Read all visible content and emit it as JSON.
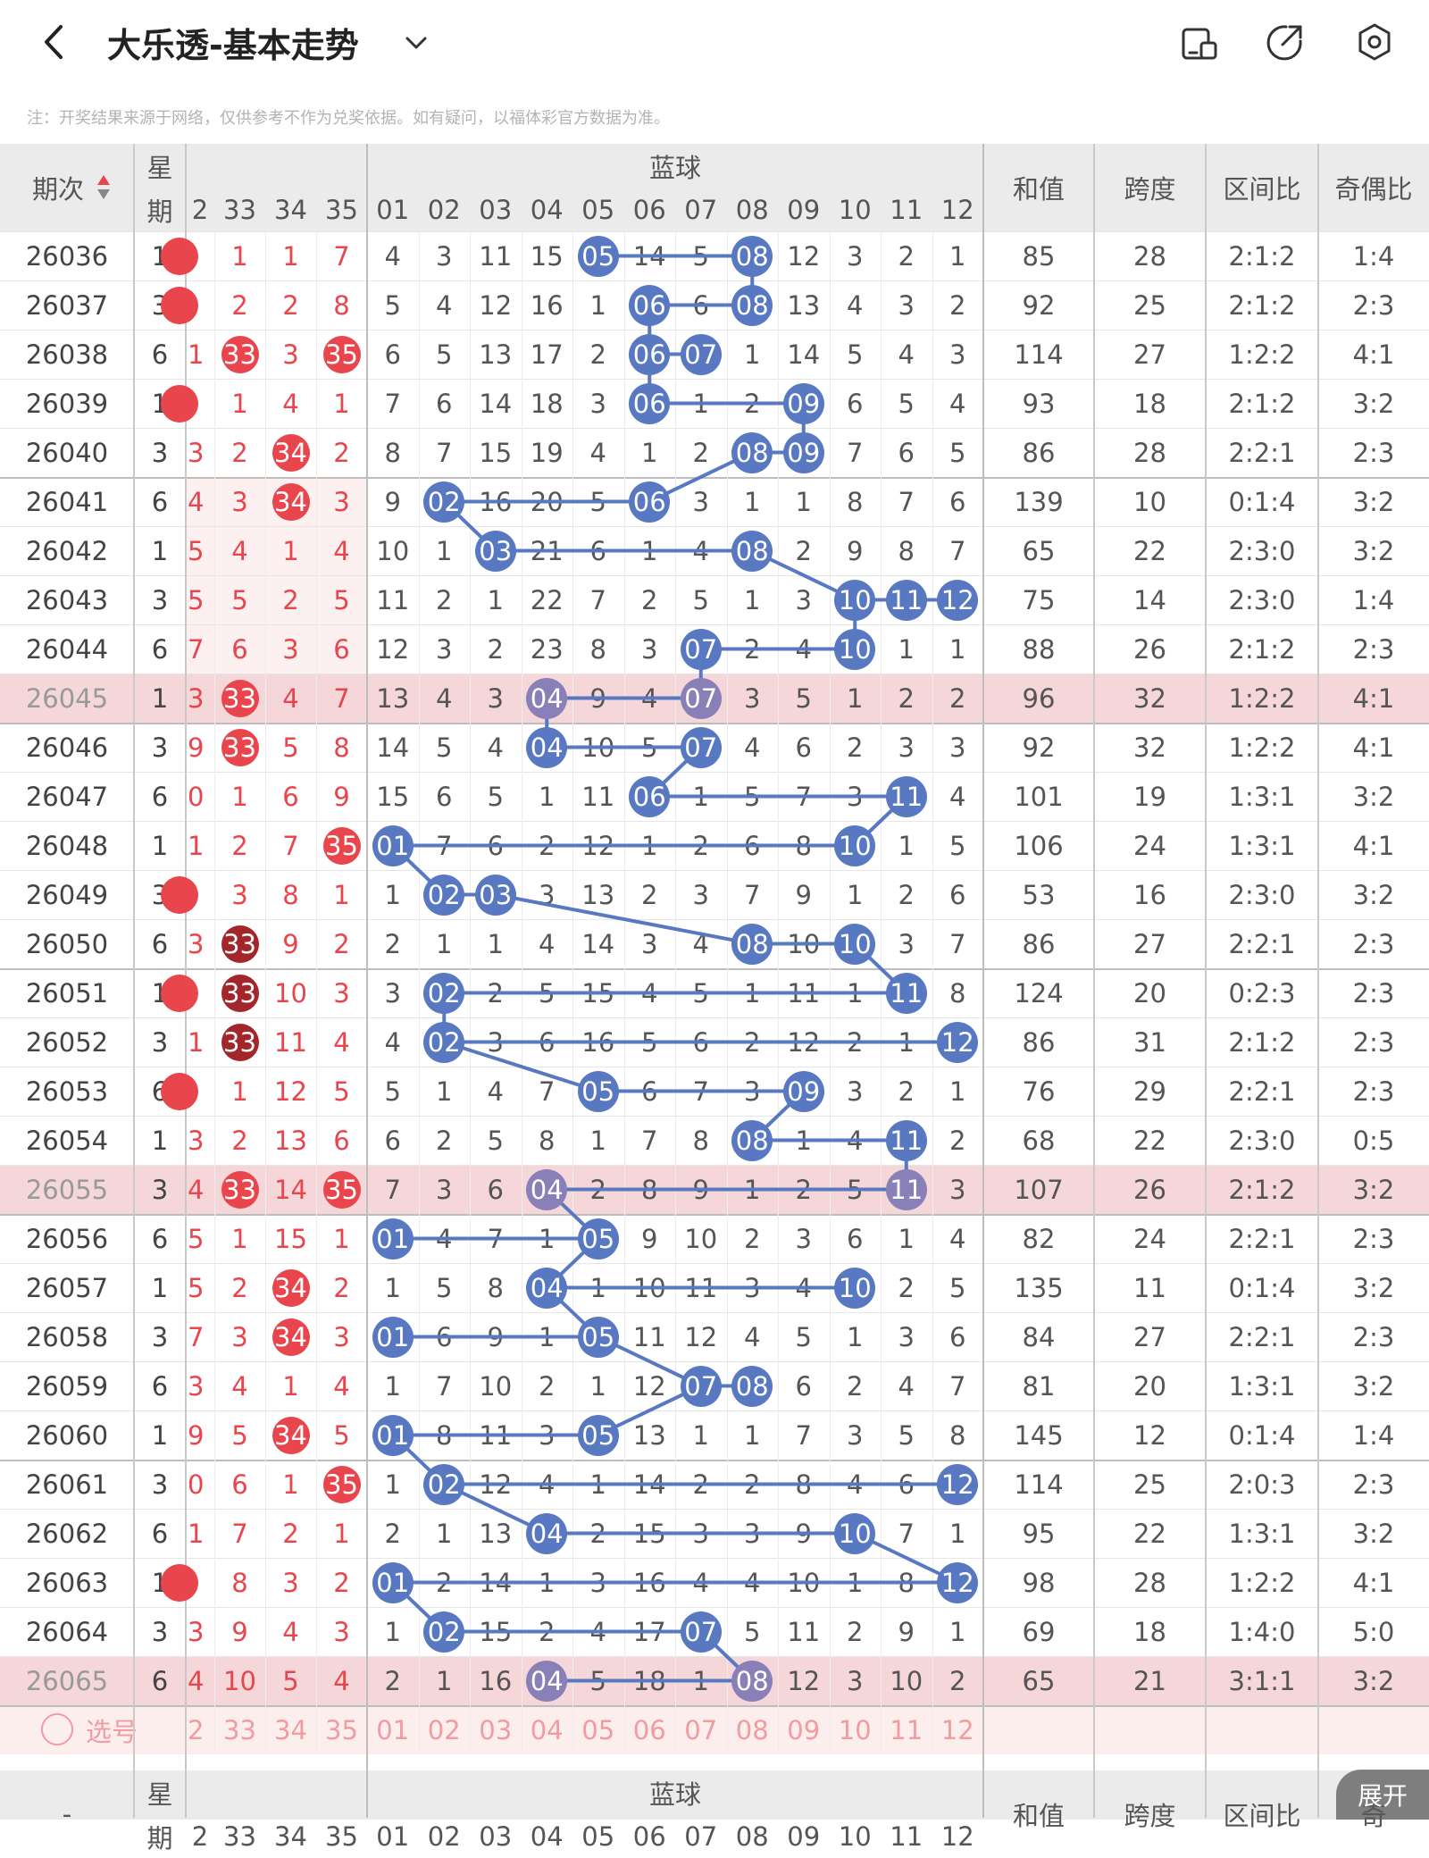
{
  "header": {
    "title": "大乐透-基本走势",
    "notice": "注：开奖结果来源于网络，仅供参考不作为兑奖依据。如有疑问，以福体彩官方数据为准。"
  },
  "table_head": {
    "period": "期次",
    "weekday": [
      "星",
      "期"
    ],
    "blue_group": "蓝球",
    "red_cols": [
      "2",
      "33",
      "34",
      "35"
    ],
    "blue_cols": [
      "01",
      "02",
      "03",
      "04",
      "05",
      "06",
      "07",
      "08",
      "09",
      "10",
      "11",
      "12"
    ],
    "stats": [
      "和值",
      "跨度",
      "区间比",
      "奇偶比"
    ]
  },
  "rows": [
    {
      "p": "26036",
      "w": "1",
      "r": [
        "2",
        "1",
        "1",
        "7"
      ],
      "b": [
        "4",
        "3",
        "11",
        "15",
        "05",
        "14",
        "5",
        "08",
        "12",
        "3",
        "2",
        "1"
      ],
      "s": [
        "85",
        "28",
        "2:1:2",
        "1:4"
      ]
    },
    {
      "p": "26037",
      "w": "3",
      "r": [
        "2",
        "2",
        "2",
        "8"
      ],
      "b": [
        "5",
        "4",
        "12",
        "16",
        "1",
        "06",
        "6",
        "08",
        "13",
        "4",
        "3",
        "2"
      ],
      "s": [
        "92",
        "25",
        "2:1:2",
        "2:3"
      ]
    },
    {
      "p": "26038",
      "w": "6",
      "r": [
        "1",
        "33",
        "3",
        "35"
      ],
      "b": [
        "6",
        "5",
        "13",
        "17",
        "2",
        "06",
        "07",
        "1",
        "14",
        "5",
        "4",
        "3"
      ],
      "s": [
        "114",
        "27",
        "1:2:2",
        "4:1"
      ]
    },
    {
      "p": "26039",
      "w": "1",
      "r": [
        "2",
        "1",
        "4",
        "1"
      ],
      "b": [
        "7",
        "6",
        "14",
        "18",
        "3",
        "06",
        "1",
        "2",
        "09",
        "6",
        "5",
        "4"
      ],
      "s": [
        "93",
        "18",
        "2:1:2",
        "3:2"
      ]
    },
    {
      "p": "26040",
      "w": "3",
      "r": [
        "3",
        "2",
        "34",
        "2"
      ],
      "b": [
        "8",
        "7",
        "15",
        "19",
        "4",
        "1",
        "2",
        "08",
        "09",
        "7",
        "6",
        "5"
      ],
      "s": [
        "86",
        "28",
        "2:2:1",
        "2:3"
      ]
    },
    {
      "p": "26041",
      "w": "6",
      "r": [
        "4",
        "3",
        "34",
        "3"
      ],
      "b": [
        "9",
        "02",
        "16",
        "20",
        "5",
        "06",
        "3",
        "1",
        "1",
        "8",
        "7",
        "6"
      ],
      "s": [
        "139",
        "10",
        "0:1:4",
        "3:2"
      ]
    },
    {
      "p": "26042",
      "w": "1",
      "r": [
        "5",
        "4",
        "1",
        "4"
      ],
      "b": [
        "10",
        "1",
        "03",
        "21",
        "6",
        "1",
        "4",
        "08",
        "2",
        "9",
        "8",
        "7"
      ],
      "s": [
        "65",
        "22",
        "2:3:0",
        "3:2"
      ]
    },
    {
      "p": "26043",
      "w": "3",
      "r": [
        "5",
        "5",
        "2",
        "5"
      ],
      "b": [
        "11",
        "2",
        "1",
        "22",
        "7",
        "2",
        "5",
        "1",
        "3",
        "10",
        "11",
        "12"
      ],
      "s": [
        "75",
        "14",
        "2:3:0",
        "1:4"
      ]
    },
    {
      "p": "26044",
      "w": "6",
      "r": [
        "7",
        "6",
        "3",
        "6"
      ],
      "b": [
        "12",
        "3",
        "2",
        "23",
        "8",
        "3",
        "07",
        "2",
        "4",
        "10",
        "1",
        "1"
      ],
      "s": [
        "88",
        "26",
        "2:1:2",
        "2:3"
      ]
    },
    {
      "p": "26045",
      "w": "1",
      "r": [
        "3",
        "33",
        "4",
        "7"
      ],
      "b": [
        "13",
        "4",
        "3",
        "04",
        "9",
        "4",
        "07",
        "3",
        "5",
        "1",
        "2",
        "2"
      ],
      "s": [
        "96",
        "32",
        "1:2:2",
        "4:1"
      ]
    },
    {
      "p": "26046",
      "w": "3",
      "r": [
        "9",
        "33",
        "5",
        "8"
      ],
      "b": [
        "14",
        "5",
        "4",
        "04",
        "10",
        "5",
        "07",
        "4",
        "6",
        "2",
        "3",
        "3"
      ],
      "s": [
        "92",
        "32",
        "1:2:2",
        "4:1"
      ]
    },
    {
      "p": "26047",
      "w": "6",
      "r": [
        "0",
        "1",
        "6",
        "9"
      ],
      "b": [
        "15",
        "6",
        "5",
        "1",
        "11",
        "06",
        "1",
        "5",
        "7",
        "3",
        "11",
        "4"
      ],
      "s": [
        "101",
        "19",
        "1:3:1",
        "3:2"
      ]
    },
    {
      "p": "26048",
      "w": "1",
      "r": [
        "1",
        "2",
        "7",
        "35"
      ],
      "b": [
        "01",
        "7",
        "6",
        "2",
        "12",
        "1",
        "2",
        "6",
        "8",
        "10",
        "1",
        "5"
      ],
      "s": [
        "106",
        "24",
        "1:3:1",
        "4:1"
      ]
    },
    {
      "p": "26049",
      "w": "3",
      "r": [
        "2",
        "3",
        "8",
        "1"
      ],
      "b": [
        "1",
        "02",
        "03",
        "3",
        "13",
        "2",
        "3",
        "7",
        "9",
        "1",
        "2",
        "6"
      ],
      "s": [
        "53",
        "16",
        "2:3:0",
        "3:2"
      ]
    },
    {
      "p": "26050",
      "w": "6",
      "r": [
        "3",
        "33",
        "9",
        "2"
      ],
      "b": [
        "2",
        "1",
        "1",
        "4",
        "14",
        "3",
        "4",
        "08",
        "10",
        "10",
        "3",
        "7"
      ],
      "s": [
        "86",
        "27",
        "2:2:1",
        "2:3"
      ]
    },
    {
      "p": "26051",
      "w": "1",
      "r": [
        "2",
        "33",
        "10",
        "3"
      ],
      "b": [
        "3",
        "02",
        "2",
        "5",
        "15",
        "4",
        "5",
        "1",
        "11",
        "1",
        "11",
        "8"
      ],
      "s": [
        "124",
        "20",
        "0:2:3",
        "2:3"
      ]
    },
    {
      "p": "26052",
      "w": "3",
      "r": [
        "1",
        "33",
        "11",
        "4"
      ],
      "b": [
        "4",
        "02",
        "3",
        "6",
        "16",
        "5",
        "6",
        "2",
        "12",
        "2",
        "1",
        "12"
      ],
      "s": [
        "86",
        "31",
        "2:1:2",
        "2:3"
      ]
    },
    {
      "p": "26053",
      "w": "6",
      "r": [
        "2",
        "1",
        "12",
        "5"
      ],
      "b": [
        "5",
        "1",
        "4",
        "7",
        "05",
        "6",
        "7",
        "3",
        "09",
        "3",
        "2",
        "1"
      ],
      "s": [
        "76",
        "29",
        "2:2:1",
        "2:3"
      ]
    },
    {
      "p": "26054",
      "w": "1",
      "r": [
        "3",
        "2",
        "13",
        "6"
      ],
      "b": [
        "6",
        "2",
        "5",
        "8",
        "1",
        "7",
        "8",
        "08",
        "1",
        "4",
        "11",
        "2"
      ],
      "s": [
        "68",
        "22",
        "2:3:0",
        "0:5"
      ]
    },
    {
      "p": "26055",
      "w": "3",
      "r": [
        "4",
        "33",
        "14",
        "35"
      ],
      "b": [
        "7",
        "3",
        "6",
        "04",
        "2",
        "8",
        "9",
        "1",
        "2",
        "5",
        "11",
        "3"
      ],
      "s": [
        "107",
        "26",
        "2:1:2",
        "3:2"
      ]
    },
    {
      "p": "26056",
      "w": "6",
      "r": [
        "5",
        "1",
        "15",
        "1"
      ],
      "b": [
        "01",
        "4",
        "7",
        "1",
        "05",
        "9",
        "10",
        "2",
        "3",
        "6",
        "1",
        "4"
      ],
      "s": [
        "82",
        "24",
        "2:2:1",
        "2:3"
      ]
    },
    {
      "p": "26057",
      "w": "1",
      "r": [
        "5",
        "2",
        "34",
        "2"
      ],
      "b": [
        "1",
        "5",
        "8",
        "04",
        "1",
        "10",
        "11",
        "3",
        "4",
        "10",
        "2",
        "5"
      ],
      "s": [
        "135",
        "11",
        "0:1:4",
        "3:2"
      ]
    },
    {
      "p": "26058",
      "w": "3",
      "r": [
        "7",
        "3",
        "34",
        "3"
      ],
      "b": [
        "01",
        "6",
        "9",
        "1",
        "05",
        "11",
        "12",
        "4",
        "5",
        "1",
        "3",
        "6"
      ],
      "s": [
        "84",
        "27",
        "2:2:1",
        "2:3"
      ]
    },
    {
      "p": "26059",
      "w": "6",
      "r": [
        "3",
        "4",
        "1",
        "4"
      ],
      "b": [
        "1",
        "7",
        "10",
        "2",
        "1",
        "12",
        "07",
        "08",
        "6",
        "2",
        "4",
        "7"
      ],
      "s": [
        "81",
        "20",
        "1:3:1",
        "3:2"
      ]
    },
    {
      "p": "26060",
      "w": "1",
      "r": [
        "9",
        "5",
        "34",
        "5"
      ],
      "b": [
        "01",
        "8",
        "11",
        "3",
        "05",
        "13",
        "1",
        "1",
        "7",
        "3",
        "5",
        "8"
      ],
      "s": [
        "145",
        "12",
        "0:1:4",
        "1:4"
      ]
    },
    {
      "p": "26061",
      "w": "3",
      "r": [
        "0",
        "6",
        "1",
        "35"
      ],
      "b": [
        "1",
        "02",
        "12",
        "4",
        "1",
        "14",
        "2",
        "2",
        "8",
        "4",
        "6",
        "12"
      ],
      "s": [
        "114",
        "25",
        "2:0:3",
        "2:3"
      ]
    },
    {
      "p": "26062",
      "w": "6",
      "r": [
        "1",
        "7",
        "2",
        "1"
      ],
      "b": [
        "2",
        "1",
        "13",
        "04",
        "2",
        "15",
        "3",
        "3",
        "9",
        "10",
        "7",
        "1"
      ],
      "s": [
        "95",
        "22",
        "1:3:1",
        "3:2"
      ]
    },
    {
      "p": "26063",
      "w": "1",
      "r": [
        "2",
        "8",
        "3",
        "2"
      ],
      "b": [
        "01",
        "2",
        "14",
        "1",
        "3",
        "16",
        "4",
        "4",
        "10",
        "1",
        "8",
        "12"
      ],
      "s": [
        "98",
        "28",
        "1:2:2",
        "4:1"
      ]
    },
    {
      "p": "26064",
      "w": "3",
      "r": [
        "3",
        "9",
        "4",
        "3"
      ],
      "b": [
        "1",
        "02",
        "15",
        "2",
        "4",
        "17",
        "07",
        "5",
        "11",
        "2",
        "9",
        "1"
      ],
      "s": [
        "69",
        "18",
        "1:4:0",
        "5:0"
      ]
    },
    {
      "p": "26065",
      "w": "6",
      "r": [
        "4",
        "10",
        "5",
        "4"
      ],
      "b": [
        "2",
        "1",
        "16",
        "04",
        "5",
        "18",
        "1",
        "08",
        "12",
        "3",
        "10",
        "2"
      ],
      "s": [
        "65",
        "21",
        "3:1:1",
        "3:2"
      ]
    }
  ],
  "select_row": {
    "label": "选号",
    "red": [
      "2",
      "33",
      "34",
      "35"
    ],
    "blue": [
      "01",
      "02",
      "03",
      "04",
      "05",
      "06",
      "07",
      "08",
      "09",
      "10",
      "11",
      "12"
    ]
  },
  "footer_head": {
    "period": "-",
    "weekday": [
      "星",
      "期"
    ],
    "blue_group": "蓝球",
    "red_cols": [
      "2",
      "33",
      "34",
      "35"
    ],
    "blue_cols": [
      "01",
      "02",
      "03",
      "04",
      "05",
      "06",
      "07",
      "08",
      "09",
      "10",
      "11",
      "12"
    ],
    "stats": [
      "和值",
      "跨度",
      "区间比",
      "奇"
    ],
    "expand": "展开"
  },
  "colors": {
    "red_text": "#e8454d",
    "red_ball": "#e8454d",
    "dark_ball": "#a3262b",
    "blue_ball": "#5878c2",
    "purple_ball": "#8a80b8",
    "highlight_row": "#f5d7d9",
    "header_bg": "#ebebeb"
  },
  "icons": [
    "back-arrow-icon",
    "chevron-down-icon",
    "screen-icon",
    "share-icon",
    "settings-icon",
    "sort-arrows-icon",
    "radio-icon"
  ]
}
